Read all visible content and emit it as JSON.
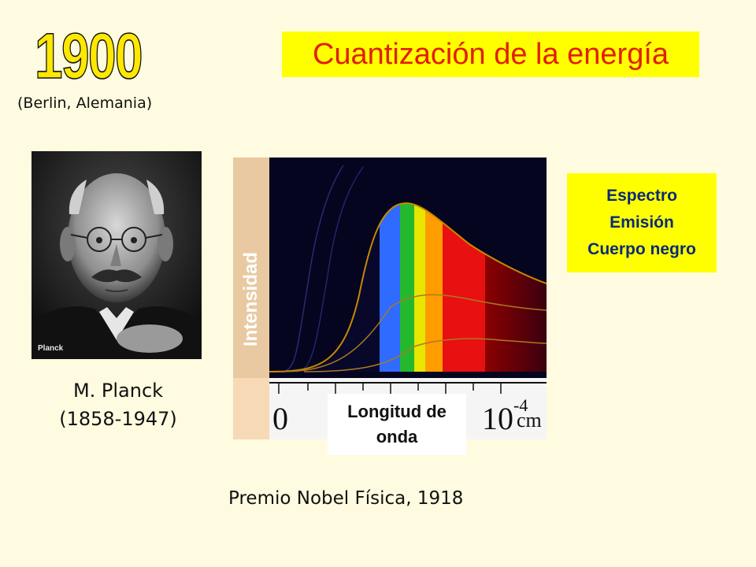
{
  "header": {
    "year": "1900",
    "city": "(Berlin, Alemania)",
    "title": "Cuantización de la energía"
  },
  "portrait": {
    "caption": "Planck",
    "name": "M. Planck",
    "years": "(1858-1947)"
  },
  "spectrum": {
    "y_label": "Intensidad",
    "x_label_line1": "Longitud  de",
    "x_label_line2": "onda",
    "axis_zero": "0",
    "axis_end": "10",
    "axis_end_exp": "-4",
    "axis_unit": "cm"
  },
  "badge": {
    "line1": "Espectro",
    "line2": "Emisión",
    "line3": "Cuerpo negro"
  },
  "footer": {
    "nobel": "Premio Nobel Física, 1918"
  },
  "colors": {
    "background": "#fffbe0",
    "highlight": "#ffff00",
    "title_text": "#e02000",
    "badge_text": "#0b2a78"
  }
}
